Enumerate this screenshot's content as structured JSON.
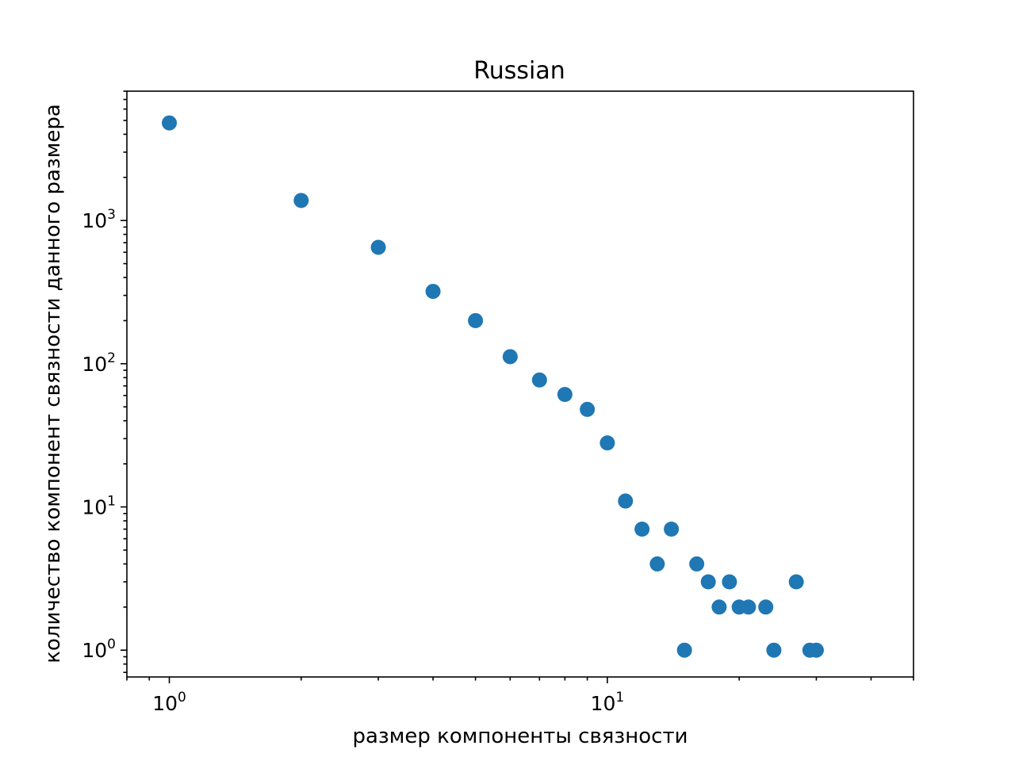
{
  "chart_data": {
    "type": "scatter",
    "title": "Russian",
    "xlabel": "размер компоненты связности",
    "ylabel": "количество компонент связности данного размера",
    "xscale": "log",
    "yscale": "log",
    "xlim": [
      0.8,
      50
    ],
    "ylim": [
      0.65,
      8000
    ],
    "x_ticks": [
      {
        "base": "10",
        "exp": "0",
        "value": 1
      },
      {
        "base": "10",
        "exp": "1",
        "value": 10
      }
    ],
    "y_ticks": [
      {
        "base": "10",
        "exp": "0",
        "value": 1
      },
      {
        "base": "10",
        "exp": "1",
        "value": 10
      },
      {
        "base": "10",
        "exp": "2",
        "value": 100
      },
      {
        "base": "10",
        "exp": "3",
        "value": 1000
      }
    ],
    "marker_color": "#1f77b4",
    "grid": false,
    "points": [
      {
        "x": 1,
        "y": 4800
      },
      {
        "x": 2,
        "y": 1380
      },
      {
        "x": 3,
        "y": 650
      },
      {
        "x": 4,
        "y": 320
      },
      {
        "x": 5,
        "y": 200
      },
      {
        "x": 6,
        "y": 112
      },
      {
        "x": 7,
        "y": 77
      },
      {
        "x": 8,
        "y": 61
      },
      {
        "x": 9,
        "y": 48
      },
      {
        "x": 10,
        "y": 28
      },
      {
        "x": 11,
        "y": 11
      },
      {
        "x": 12,
        "y": 7
      },
      {
        "x": 13,
        "y": 4
      },
      {
        "x": 14,
        "y": 7
      },
      {
        "x": 15,
        "y": 1
      },
      {
        "x": 16,
        "y": 4
      },
      {
        "x": 17,
        "y": 3
      },
      {
        "x": 18,
        "y": 2
      },
      {
        "x": 19,
        "y": 3
      },
      {
        "x": 20,
        "y": 2
      },
      {
        "x": 21,
        "y": 2
      },
      {
        "x": 23,
        "y": 2
      },
      {
        "x": 24,
        "y": 1
      },
      {
        "x": 27,
        "y": 3
      },
      {
        "x": 29,
        "y": 1
      },
      {
        "x": 30,
        "y": 1
      }
    ]
  }
}
